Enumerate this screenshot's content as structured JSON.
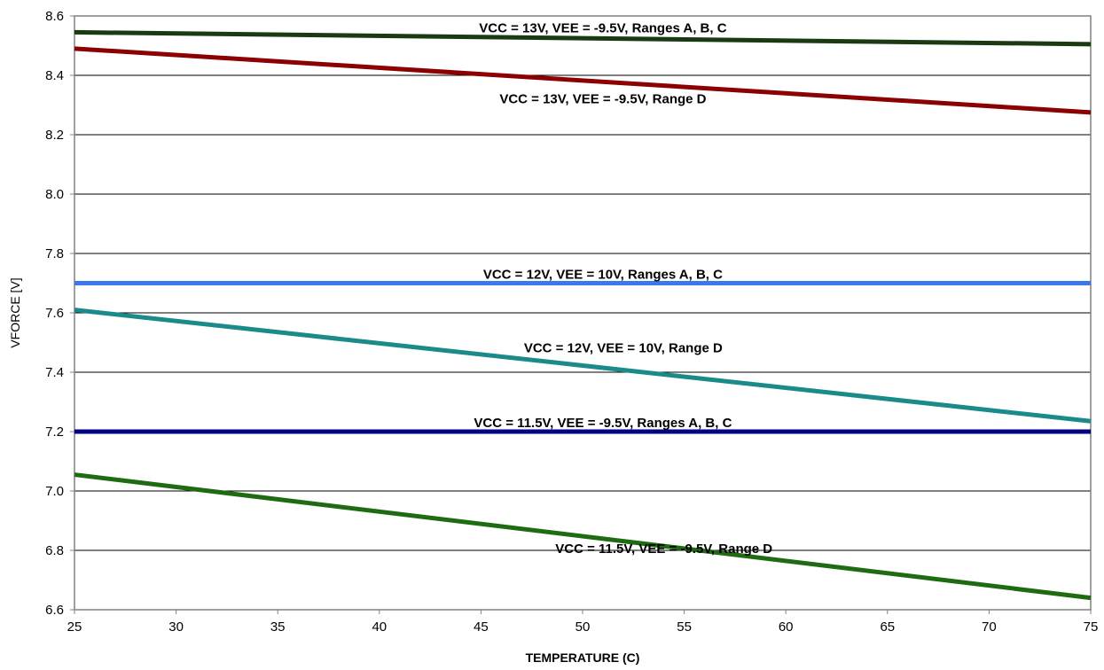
{
  "chart_data": {
    "type": "line",
    "xlabel": "TEMPERATURE (C)",
    "ylabel": "VFORCE [V]",
    "xlim": [
      25,
      75
    ],
    "ylim": [
      6.6,
      8.6
    ],
    "xticks": [
      25,
      30,
      35,
      40,
      45,
      50,
      55,
      60,
      65,
      70,
      75
    ],
    "yticks": [
      "6.6",
      "6.8",
      "7.0",
      "7.2",
      "7.4",
      "7.6",
      "7.8",
      "8.0",
      "8.2",
      "8.4",
      "8.6"
    ],
    "grid": "horizontal",
    "legend": "none",
    "series": [
      {
        "name": "VCC = 13V, VEE = -9.5V, Ranges A, B, C",
        "x": [
          25,
          75
        ],
        "values": [
          8.545,
          8.505
        ],
        "color": "#1a3a12"
      },
      {
        "name": "VCC = 13V, VEE = -9.5V, Range D",
        "x": [
          25,
          75
        ],
        "values": [
          8.49,
          8.275
        ],
        "color": "#8b0000"
      },
      {
        "name": "VCC = 12V, VEE = 10V, Ranges A, B, C",
        "x": [
          25,
          75
        ],
        "values": [
          7.7,
          7.7
        ],
        "color": "#3b79e8"
      },
      {
        "name": "VCC = 12V, VEE = 10V, Range D",
        "x": [
          25,
          75
        ],
        "values": [
          7.61,
          7.235
        ],
        "color": "#1a8a8a"
      },
      {
        "name": "VCC = 11.5V, VEE = -9.5V, Ranges A, B, C",
        "x": [
          25,
          75
        ],
        "values": [
          7.2,
          7.2
        ],
        "color": "#000080"
      },
      {
        "name": "VCC = 11.5V, VEE = -9.5V, Range D",
        "x": [
          25,
          75
        ],
        "values": [
          7.055,
          6.64
        ],
        "color": "#1e6b12"
      }
    ]
  }
}
